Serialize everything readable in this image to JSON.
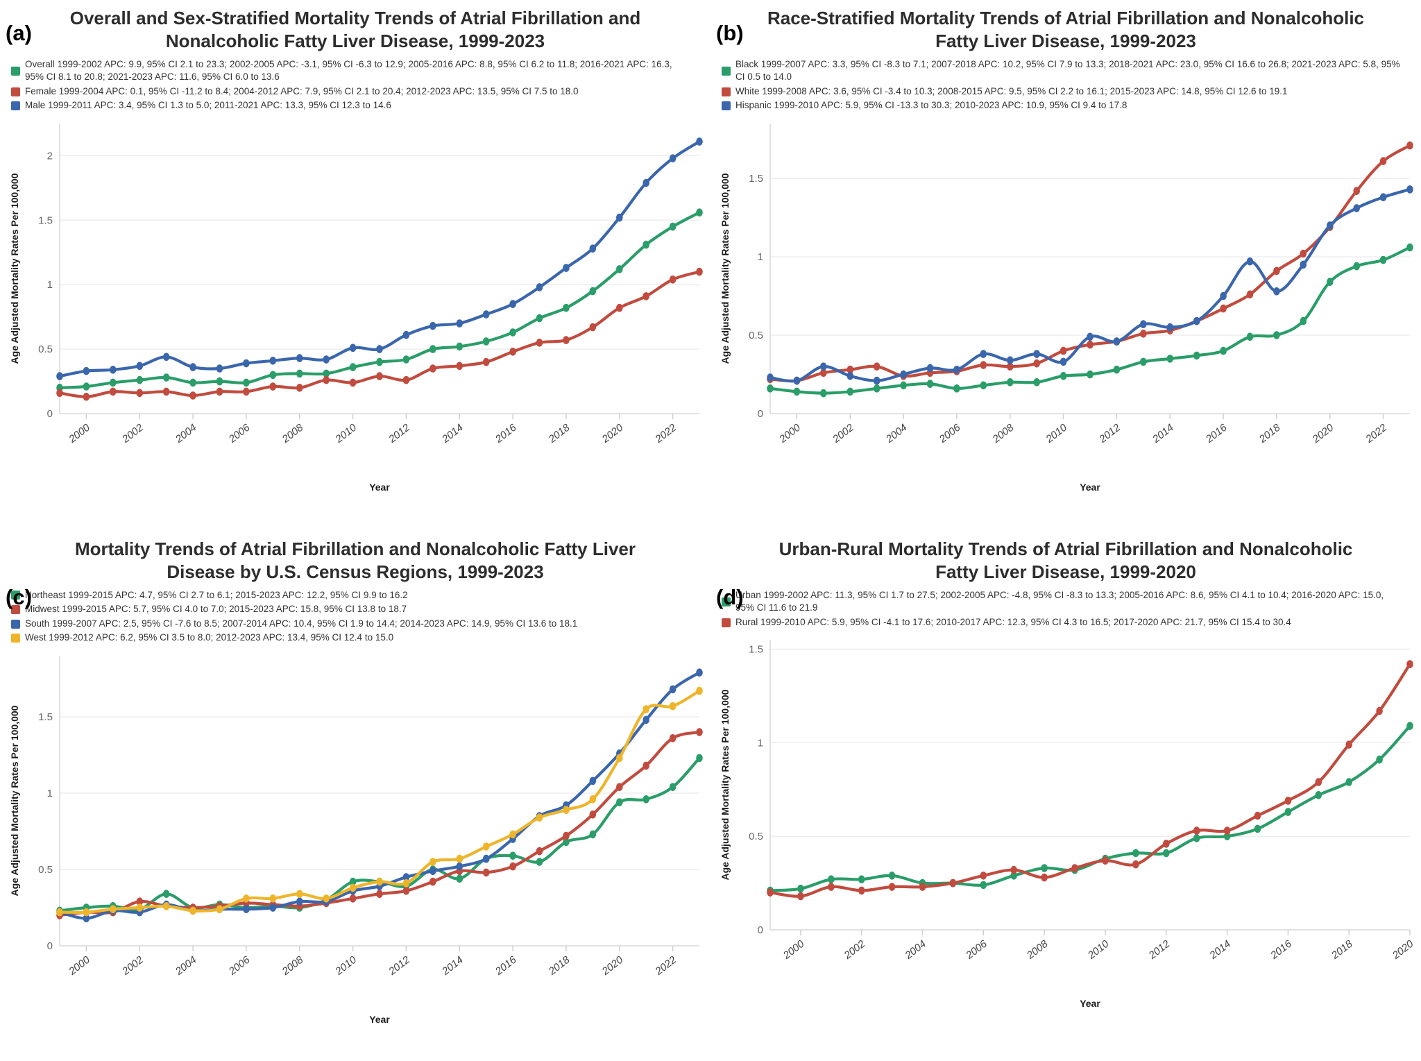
{
  "figure": {
    "background": "#ffffff"
  },
  "colors": {
    "green": "#2a9d69",
    "red": "#c14b3e",
    "blue": "#3a66ac",
    "yellow": "#eeb52b"
  },
  "panels": [
    {
      "letter": "(a)",
      "title": "Overall and Sex-Stratified Mortality Trends of Atrial Fibrillation and Nonalcoholic Fatty Liver Disease, 1999-2023",
      "legend": [
        {
          "color": "#2a9d69",
          "label": "Overall 1999-2002 APC: 9.9, 95% CI 2.1 to 23.3; 2002-2005 APC: -3.1, 95% CI -6.3 to 12.9; 2005-2016 APC: 8.8, 95% CI 6.2 to 11.8; 2016-2021 APC: 16.3, 95% CI 8.1 to 20.8; 2021-2023 APC: 11.6, 95% CI 6.0 to 13.6"
        },
        {
          "color": "#c14b3e",
          "label": "Female 1999-2004 APC: 0.1, 95% CI -11.2 to 8.4; 2004-2012 APC: 7.9, 95% CI 2.1 to 20.4; 2012-2023 APC: 13.5, 95% CI 7.5 to 18.0"
        },
        {
          "color": "#3a66ac",
          "label": "Male 1999-2011 APC: 3.4, 95% CI 1.3 to 5.0; 2011-2021 APC: 13.3, 95% CI 12.3 to 14.6"
        }
      ],
      "chart_data": {
        "type": "line",
        "title": "Overall and Sex-Stratified Mortality Trends of Atrial Fibrillation and Nonalcoholic Fatty Liver Disease, 1999-2023",
        "xlabel": "Year",
        "ylabel": "Age Adjusted Mortality Rates Per 100,000",
        "grid": true,
        "legend_position": "top-left",
        "xlim": [
          1999,
          2023
        ],
        "ylim": [
          0,
          2.25
        ],
        "yticks": [
          0,
          0.5,
          1,
          1.5,
          2
        ],
        "ytick_labels": [
          "0",
          "0.5",
          "1",
          "1.5",
          "2"
        ],
        "xticks": [
          2000,
          2002,
          2004,
          2006,
          2008,
          2010,
          2012,
          2014,
          2016,
          2018,
          2020,
          2022
        ],
        "x": [
          1999,
          2000,
          2001,
          2002,
          2003,
          2004,
          2005,
          2006,
          2007,
          2008,
          2009,
          2010,
          2011,
          2012,
          2013,
          2014,
          2015,
          2016,
          2017,
          2018,
          2019,
          2020,
          2021,
          2022,
          2023
        ],
        "series": [
          {
            "name": "Overall",
            "color": "#2a9d69",
            "values": [
              0.2,
              0.21,
              0.24,
              0.26,
              0.28,
              0.24,
              0.25,
              0.24,
              0.3,
              0.31,
              0.31,
              0.36,
              0.4,
              0.42,
              0.5,
              0.52,
              0.56,
              0.63,
              0.74,
              0.82,
              0.95,
              1.12,
              1.31,
              1.45,
              1.56
            ]
          },
          {
            "name": "Female",
            "color": "#c14b3e",
            "values": [
              0.16,
              0.13,
              0.17,
              0.16,
              0.17,
              0.14,
              0.17,
              0.17,
              0.21,
              0.2,
              0.26,
              0.24,
              0.29,
              0.26,
              0.35,
              0.37,
              0.4,
              0.48,
              0.55,
              0.57,
              0.67,
              0.82,
              0.91,
              1.04,
              1.1
            ]
          },
          {
            "name": "Male",
            "color": "#3a66ac",
            "values": [
              0.29,
              0.33,
              0.34,
              0.37,
              0.44,
              0.36,
              0.35,
              0.39,
              0.41,
              0.43,
              0.42,
              0.51,
              0.5,
              0.61,
              0.68,
              0.7,
              0.77,
              0.85,
              0.98,
              1.13,
              1.28,
              1.52,
              1.79,
              1.98,
              2.11
            ]
          }
        ]
      }
    },
    {
      "letter": "(b)",
      "title": "Race-Stratified Mortality Trends of Atrial Fibrillation and Nonalcoholic Fatty Liver Disease, 1999-2023",
      "legend": [
        {
          "color": "#2a9d69",
          "label": "Black 1999-2007 APC: 3.3, 95% CI -8.3 to 7.1; 2007-2018 APC: 10.2, 95% CI 7.9 to 13.3; 2018-2021 APC: 23.0, 95% CI 16.6 to 26.8; 2021-2023 APC: 5.8, 95% CI 0.5 to 14.0"
        },
        {
          "color": "#c14b3e",
          "label": "White 1999-2008 APC: 3.6, 95% CI -3.4 to 10.3; 2008-2015 APC: 9.5, 95% CI 2.2 to 16.1; 2015-2023 APC: 14.8, 95% CI 12.6 to 19.1"
        },
        {
          "color": "#3a66ac",
          "label": "Hispanic 1999-2010 APC: 5.9, 95% CI -13.3 to 30.3; 2010-2023 APC: 10.9, 95% CI 9.4 to 17.8"
        }
      ],
      "chart_data": {
        "type": "line",
        "title": "Race-Stratified Mortality Trends of Atrial Fibrillation and Nonalcoholic Fatty Liver Disease, 1999-2023",
        "xlabel": "Year",
        "ylabel": "Age Adjusted Mortality Rates Per 100,000",
        "grid": true,
        "legend_position": "top-left",
        "xlim": [
          1999,
          2023
        ],
        "ylim": [
          0,
          1.85
        ],
        "yticks": [
          0,
          0.5,
          1,
          1.5
        ],
        "ytick_labels": [
          "0",
          "0.5",
          "1",
          "1.5"
        ],
        "xticks": [
          2000,
          2002,
          2004,
          2006,
          2008,
          2010,
          2012,
          2014,
          2016,
          2018,
          2020,
          2022
        ],
        "x": [
          1999,
          2000,
          2001,
          2002,
          2003,
          2004,
          2005,
          2006,
          2007,
          2008,
          2009,
          2010,
          2011,
          2012,
          2013,
          2014,
          2015,
          2016,
          2017,
          2018,
          2019,
          2020,
          2021,
          2022,
          2023
        ],
        "series": [
          {
            "name": "Black",
            "color": "#2a9d69",
            "values": [
              0.16,
              0.14,
              0.13,
              0.14,
              0.16,
              0.18,
              0.19,
              0.16,
              0.18,
              0.2,
              0.2,
              0.24,
              0.25,
              0.28,
              0.33,
              0.35,
              0.37,
              0.4,
              0.49,
              0.5,
              0.59,
              0.84,
              0.94,
              0.98,
              1.06
            ]
          },
          {
            "name": "White",
            "color": "#c14b3e",
            "values": [
              0.22,
              0.21,
              0.26,
              0.28,
              0.3,
              0.24,
              0.26,
              0.27,
              0.31,
              0.3,
              0.32,
              0.4,
              0.44,
              0.46,
              0.51,
              0.53,
              0.59,
              0.67,
              0.76,
              0.91,
              1.02,
              1.19,
              1.42,
              1.61,
              1.71
            ]
          },
          {
            "name": "Hispanic",
            "color": "#3a66ac",
            "values": [
              0.23,
              0.21,
              0.3,
              0.24,
              0.21,
              0.25,
              0.29,
              0.28,
              0.38,
              0.34,
              0.38,
              0.33,
              0.49,
              0.46,
              0.57,
              0.55,
              0.59,
              0.75,
              0.97,
              0.78,
              0.95,
              1.2,
              1.31,
              1.38,
              1.43
            ]
          }
        ]
      }
    },
    {
      "letter": "(c)",
      "title": "Mortality Trends of Atrial Fibrillation and Nonalcoholic Fatty Liver Disease by U.S. Census Regions, 1999-2023",
      "legend": [
        {
          "color": "#2a9d69",
          "label": "Northeast 1999-2015 APC: 4.7, 95% CI 2.7 to 6.1; 2015-2023 APC: 12.2, 95% CI 9.9 to 16.2"
        },
        {
          "color": "#c14b3e",
          "label": "Midwest 1999-2015 APC: 5.7, 95% CI 4.0 to 7.0; 2015-2023 APC: 15.8, 95% CI 13.8 to 18.7"
        },
        {
          "color": "#3a66ac",
          "label": "South 1999-2007 APC: 2.5, 95% CI -7.6 to 8.5; 2007-2014 APC: 10.4, 95% CI 1.9 to 14.4; 2014-2023 APC: 14.9, 95% CI 13.6 to 18.1"
        },
        {
          "color": "#eeb52b",
          "label": "West 1999-2012 APC: 6.2, 95% CI 3.5 to 8.0; 2012-2023 APC: 13.4, 95% CI 12.4 to 15.0"
        }
      ],
      "chart_data": {
        "type": "line",
        "title": "Mortality Trends of Atrial Fibrillation and Nonalcoholic Fatty Liver Disease by U.S. Census Regions, 1999-2023",
        "xlabel": "Year",
        "ylabel": "Age Adjusted Mortality Rates Per 100,000",
        "grid": true,
        "legend_position": "top-left",
        "xlim": [
          1999,
          2023
        ],
        "ylim": [
          0,
          1.9
        ],
        "yticks": [
          0,
          0.5,
          1,
          1.5
        ],
        "ytick_labels": [
          "0",
          "0.5",
          "1",
          "1.5"
        ],
        "xticks": [
          2000,
          2002,
          2004,
          2006,
          2008,
          2010,
          2012,
          2014,
          2016,
          2018,
          2020,
          2022
        ],
        "x": [
          1999,
          2000,
          2001,
          2002,
          2003,
          2004,
          2005,
          2006,
          2007,
          2008,
          2009,
          2010,
          2011,
          2012,
          2013,
          2014,
          2015,
          2016,
          2017,
          2018,
          2019,
          2020,
          2021,
          2022,
          2023
        ],
        "series": [
          {
            "name": "Northeast",
            "color": "#2a9d69",
            "values": [
              0.23,
              0.25,
              0.26,
              0.24,
              0.34,
              0.25,
              0.27,
              0.25,
              0.26,
              0.25,
              0.3,
              0.42,
              0.42,
              0.39,
              0.5,
              0.44,
              0.57,
              0.59,
              0.55,
              0.68,
              0.73,
              0.94,
              0.96,
              1.04,
              1.23
            ]
          },
          {
            "name": "Midwest",
            "color": "#c14b3e",
            "values": [
              0.2,
              0.22,
              0.22,
              0.29,
              0.26,
              0.25,
              0.26,
              0.28,
              0.27,
              0.26,
              0.28,
              0.31,
              0.34,
              0.36,
              0.42,
              0.49,
              0.48,
              0.52,
              0.62,
              0.72,
              0.86,
              1.04,
              1.18,
              1.36,
              1.4
            ]
          },
          {
            "name": "South",
            "color": "#3a66ac",
            "values": [
              0.22,
              0.18,
              0.23,
              0.22,
              0.27,
              0.23,
              0.24,
              0.24,
              0.25,
              0.29,
              0.29,
              0.36,
              0.39,
              0.45,
              0.49,
              0.52,
              0.57,
              0.7,
              0.85,
              0.92,
              1.08,
              1.26,
              1.48,
              1.68,
              1.79
            ]
          },
          {
            "name": "West",
            "color": "#eeb52b",
            "values": [
              0.22,
              0.22,
              0.24,
              0.25,
              0.26,
              0.23,
              0.24,
              0.31,
              0.31,
              0.34,
              0.31,
              0.38,
              0.42,
              0.41,
              0.55,
              0.57,
              0.65,
              0.73,
              0.84,
              0.89,
              0.96,
              1.23,
              1.55,
              1.57,
              1.67
            ]
          }
        ]
      }
    },
    {
      "letter": "(d)",
      "title": "Urban-Rural Mortality Trends of Atrial Fibrillation and Nonalcoholic Fatty Liver Disease, 1999-2020",
      "legend": [
        {
          "color": "#2a9d69",
          "label": "Urban 1999-2002 APC: 11.3, 95% CI 1.7 to 27.5; 2002-2005 APC: -4.8, 95% CI -8.3 to 13.3; 2005-2016 APC: 8.6, 95% CI 4.1 to 10.4; 2016-2020 APC: 15.0, 95% CI 11.6 to 21.9"
        },
        {
          "color": "#c14b3e",
          "label": "Rural 1999-2010 APC: 5.9, 95% CI -4.1 to 17.6; 2010-2017 APC: 12.3, 95% CI 4.3 to 16.5; 2017-2020 APC: 21.7, 95% CI 15.4 to 30.4"
        }
      ],
      "chart_data": {
        "type": "line",
        "title": "Urban-Rural Mortality Trends of Atrial Fibrillation and Nonalcoholic Fatty Liver Disease, 1999-2020",
        "xlabel": "Year",
        "ylabel": "Age Adjusted Mortality Rates Per 100,000",
        "grid": true,
        "legend_position": "top-left",
        "xlim": [
          1999,
          2020
        ],
        "ylim": [
          0,
          1.55
        ],
        "yticks": [
          0,
          0.5,
          1,
          1.5
        ],
        "ytick_labels": [
          "0",
          "0.5",
          "1",
          "1.5"
        ],
        "xticks": [
          2000,
          2002,
          2004,
          2006,
          2008,
          2010,
          2012,
          2014,
          2016,
          2018,
          2020
        ],
        "x": [
          1999,
          2000,
          2001,
          2002,
          2003,
          2004,
          2005,
          2006,
          2007,
          2008,
          2009,
          2010,
          2011,
          2012,
          2013,
          2014,
          2015,
          2016,
          2017,
          2018,
          2019,
          2020
        ],
        "series": [
          {
            "name": "Urban",
            "color": "#2a9d69",
            "values": [
              0.21,
              0.22,
              0.27,
              0.27,
              0.29,
              0.25,
              0.25,
              0.24,
              0.29,
              0.33,
              0.32,
              0.38,
              0.41,
              0.41,
              0.49,
              0.5,
              0.54,
              0.63,
              0.72,
              0.79,
              0.91,
              1.09
            ]
          },
          {
            "name": "Rural",
            "color": "#c14b3e",
            "values": [
              0.2,
              0.18,
              0.23,
              0.21,
              0.23,
              0.23,
              0.25,
              0.29,
              0.32,
              0.28,
              0.33,
              0.37,
              0.35,
              0.46,
              0.53,
              0.53,
              0.61,
              0.69,
              0.79,
              0.99,
              1.17,
              1.42
            ]
          }
        ]
      }
    }
  ]
}
